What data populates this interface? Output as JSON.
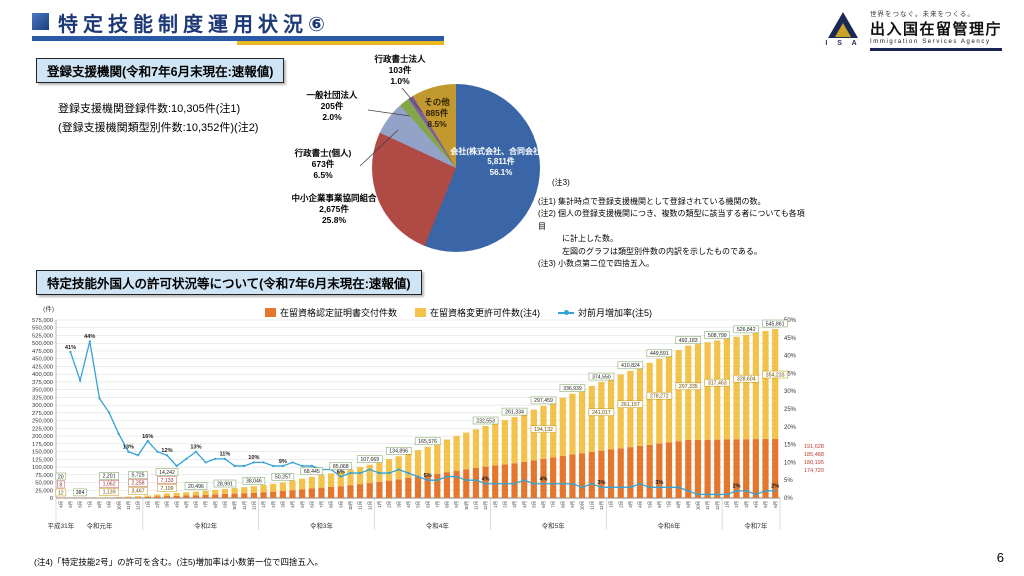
{
  "slide": {
    "title": "特定技能制度運用状況⑥",
    "page_number": "6",
    "agency": {
      "tagline": "世界をつなぐ。未来をつくる。",
      "name": "出入国在留管理庁",
      "name_en": "Immigration Services Agency",
      "mark_label": "I S A"
    }
  },
  "section1": {
    "badge": "登録支援機関(令和7年6月末現在:速報値)",
    "stats_line1": "登録支援機関登録件数:10,305件(注1)",
    "stats_line2": "(登録支援機関類型別件数:10,352件)(注2)",
    "note_tag": "(注3)",
    "pie": {
      "segments": [
        {
          "name": "会社(株式会社、合同会社等)",
          "count": "5,811件",
          "pct": "56.1%",
          "pct_num": 56.1,
          "color": "#3a66a8"
        },
        {
          "name": "中小企業事業協同組合",
          "count": "2,675件",
          "pct": "25.8%",
          "pct_num": 25.8,
          "color": "#b04a45"
        },
        {
          "name": "行政書士(個人)",
          "count": "673件",
          "pct": "6.5%",
          "pct_num": 6.5,
          "color": "#93a2c7"
        },
        {
          "name": "一般社団法人",
          "count": "205件",
          "pct": "2.0%",
          "pct_num": 2.0,
          "color": "#86a44a"
        },
        {
          "name": "行政書士法人",
          "count": "103件",
          "pct": "1.0%",
          "pct_num": 1.0,
          "color": "#7d5fa0"
        },
        {
          "name": "その他",
          "count": "885件",
          "pct": "8.5%",
          "pct_num": 8.5,
          "color": "#c2992e"
        }
      ]
    },
    "notes": [
      "(注1) 集計時点で登録支援機関として登録されている機関の数。",
      "(注2) 個人の登録支援機関につき、複数の類型に該当する者についても各項目",
      "　　　に計上した数。",
      "　　　左図のグラフは類型別件数の内訳を示したものである。",
      "(注3) 小数点第二位で四捨五入。"
    ]
  },
  "section2": {
    "badge": "特定技能外国人の許可状況等について(令和7年6月末現在:速報値)",
    "footnote": "(注4)「特定技能2号」の許可を含む。(注5)増加率は小数第一位で四捨五入。"
  },
  "chart_data": {
    "type": "bar+line (stacked monthly cumulative permits with month-over-month rate line)",
    "unit_label": "(件)",
    "y_left": {
      "min": 0,
      "max": 575000,
      "step": 25000
    },
    "y_right": {
      "min": 0,
      "max": 50,
      "step": 5,
      "unit": "%"
    },
    "legend": [
      {
        "label": "在留資格認定証明書交付件数",
        "color": "#e4762e",
        "type": "bar"
      },
      {
        "label": "在留資格変更許可件数(注4)",
        "color": "#f2c24a",
        "type": "bar"
      },
      {
        "label": "対前月増加率(注5)",
        "color": "#35a3d5",
        "type": "line"
      }
    ],
    "months": [
      "4月",
      "5月",
      "6月",
      "7月",
      "8月",
      "9月",
      "10月",
      "11月",
      "12月",
      "1月",
      "2月",
      "3月",
      "4月",
      "5月",
      "6月",
      "7月",
      "8月",
      "9月",
      "10月",
      "11月",
      "12月",
      "1月",
      "2月",
      "3月",
      "4月",
      "5月",
      "6月",
      "7月",
      "8月",
      "9月",
      "10月",
      "11月",
      "12月",
      "1月",
      "2月",
      "3月",
      "4月",
      "5月",
      "6月",
      "7月",
      "8月",
      "9月",
      "10月",
      "11月",
      "12月",
      "1月",
      "2月",
      "3月",
      "4月",
      "5月",
      "6月",
      "7月",
      "8月",
      "9月",
      "10月",
      "11月",
      "12月",
      "1月",
      "2月",
      "3月",
      "4月",
      "5月",
      "6月",
      "7月",
      "8月",
      "9月",
      "10月",
      "11月",
      "12月",
      "1月",
      "2月",
      "3月",
      "4月",
      "5月",
      "6月"
    ],
    "era_labels": [
      {
        "label": "平成31年",
        "at": 0
      },
      {
        "label": "令和元年",
        "at": 4
      },
      {
        "label": "令和2年",
        "at": 15
      },
      {
        "label": "令和3年",
        "at": 27
      },
      {
        "label": "令和4年",
        "at": 39
      },
      {
        "label": "令和5年",
        "at": 51
      },
      {
        "label": "令和6年",
        "at": 63
      },
      {
        "label": "令和7年",
        "at": 72
      }
    ],
    "year_boundaries": [
      0,
      9,
      21,
      33,
      45,
      57,
      69,
      75
    ],
    "series": {
      "total_permits": [
        20,
        120,
        384,
        900,
        1500,
        2201,
        3200,
        4400,
        5725,
        8200,
        11200,
        14242,
        16300,
        18400,
        20496,
        23200,
        26100,
        28991,
        31900,
        35000,
        38046,
        41900,
        46000,
        50257,
        56100,
        62300,
        68445,
        74100,
        79600,
        85068,
        92300,
        99900,
        107669,
        116500,
        125600,
        134896,
        145000,
        155200,
        165576,
        177200,
        188900,
        200500,
        211300,
        222000,
        232553,
        242300,
        251900,
        261334,
        273300,
        285400,
        297459,
        310600,
        323800,
        336939,
        349500,
        362000,
        374550,
        386600,
        398700,
        410824,
        423800,
        436700,
        449591,
        463800,
        478000,
        492183,
        497700,
        503200,
        508799,
        514800,
        520800,
        526842,
        533200,
        539500,
        545861
      ],
      "mom_rate_pct": [
        null,
        41,
        33,
        44,
        28,
        24,
        18,
        13,
        12,
        16,
        13,
        12,
        9,
        11,
        13,
        10,
        11,
        11,
        9,
        9,
        10,
        10,
        9,
        9,
        10,
        9,
        9,
        8,
        8,
        6,
        7,
        7,
        8,
        7,
        7,
        8,
        7,
        6,
        5,
        5,
        6,
        6,
        5,
        5,
        4,
        4,
        4,
        4,
        5,
        4,
        4,
        4,
        4,
        4,
        3,
        4,
        3,
        3,
        3,
        3,
        4,
        3,
        3,
        3,
        3,
        2,
        1,
        1,
        1,
        1,
        2,
        2,
        1,
        2,
        2
      ],
      "final_split": {
        "certificate": "191,628",
        "change": "354,233",
        "total": "545,861"
      }
    },
    "annotations": {
      "totals": [
        {
          "at": 0,
          "total": "20",
          "coe": "8",
          "chg": "12"
        },
        {
          "at": 2,
          "total": "384"
        },
        {
          "at": 5,
          "total": "2,201",
          "coe": "1,062",
          "chg": "1,139"
        },
        {
          "at": 8,
          "total": "5,725",
          "coe": "2,258",
          "chg": "3,467"
        },
        {
          "at": 11,
          "total": "14,242",
          "coe": "7,133",
          "chg": "7,109"
        },
        {
          "at": 14,
          "total": "20,496"
        },
        {
          "at": 17,
          "total": "28,991"
        },
        {
          "at": 20,
          "total": "38,046"
        },
        {
          "at": 23,
          "total": "50,257"
        },
        {
          "at": 26,
          "total": "68,445"
        },
        {
          "at": 29,
          "total": "85,068"
        },
        {
          "at": 32,
          "total": "107,669"
        },
        {
          "at": 35,
          "total": "134,896"
        },
        {
          "at": 38,
          "total": "165,576"
        },
        {
          "at": 44,
          "total": "232,553"
        },
        {
          "at": 47,
          "total": "261,334"
        },
        {
          "at": 50,
          "total": "297,459"
        },
        {
          "at": 53,
          "total": "336,939"
        },
        {
          "at": 56,
          "total": "374,550"
        },
        {
          "at": 59,
          "total": "410,824"
        },
        {
          "at": 62,
          "total": "449,591"
        },
        {
          "at": 65,
          "total": "492,183"
        },
        {
          "at": 68,
          "total": "508,799"
        },
        {
          "at": 71,
          "total": "526,842"
        },
        {
          "at": 74,
          "total": "545,861"
        }
      ],
      "change_labels": [
        {
          "at": 50,
          "text": "194,132"
        },
        {
          "at": 56,
          "text": "241,017"
        },
        {
          "at": 59,
          "text": "261,157"
        },
        {
          "at": 62,
          "text": "278,272"
        },
        {
          "at": 65,
          "text": "297,335"
        },
        {
          "at": 68,
          "text": "317,463"
        },
        {
          "at": 71,
          "text": "328,604"
        },
        {
          "at": 74,
          "text": "354,233"
        }
      ],
      "coe_recent": [
        "191,628",
        "185,488",
        "180,195",
        "174,720"
      ],
      "line_labels": [
        {
          "at": 1,
          "text": "41%"
        },
        {
          "at": 3,
          "text": "44%"
        },
        {
          "at": 7,
          "text": "13%"
        },
        {
          "at": 9,
          "text": "16%"
        },
        {
          "at": 11,
          "text": "12%"
        },
        {
          "at": 14,
          "text": "13%"
        },
        {
          "at": 17,
          "text": "11%"
        },
        {
          "at": 20,
          "text": "10%"
        },
        {
          "at": 23,
          "text": "9%"
        },
        {
          "at": 29,
          "text": "6%"
        },
        {
          "at": 38,
          "text": "5%"
        },
        {
          "at": 44,
          "text": "4%"
        },
        {
          "at": 50,
          "text": "4%"
        },
        {
          "at": 56,
          "text": "3%"
        },
        {
          "at": 62,
          "text": "3%"
        },
        {
          "at": 70,
          "text": "2%"
        },
        {
          "at": 74,
          "text": "2%"
        }
      ]
    }
  }
}
